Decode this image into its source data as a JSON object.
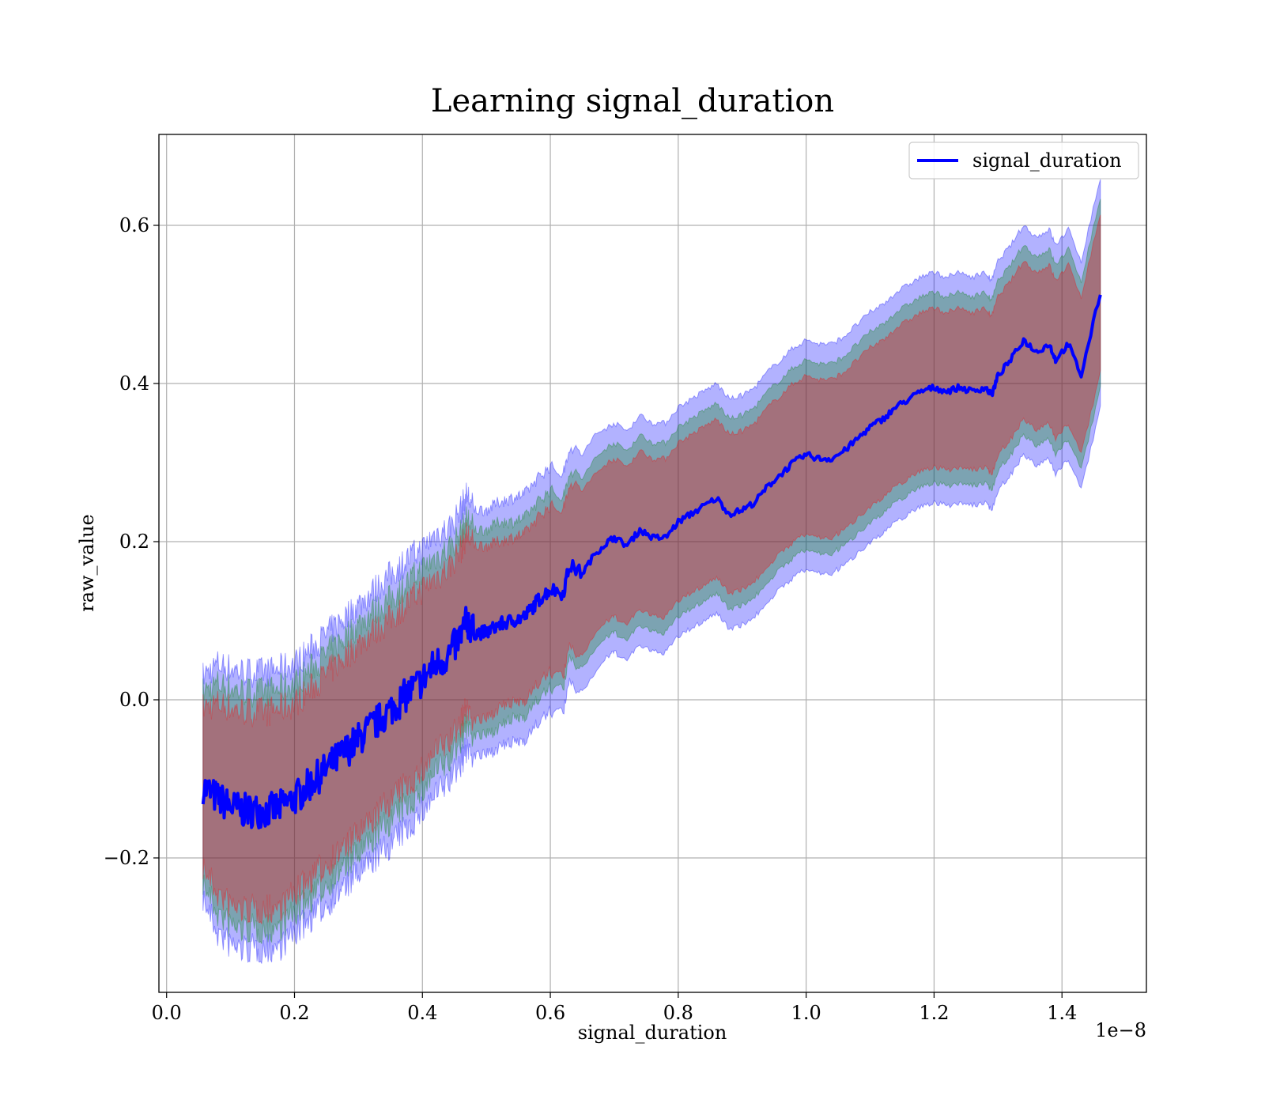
{
  "chart_data": {
    "type": "line",
    "title": "Learning signal_duration",
    "xlabel": "signal_duration",
    "ylabel": "raw_value",
    "x_offset_label": "1e−8",
    "xlim": [
      -0.012,
      1.532
    ],
    "ylim": [
      -0.37,
      0.715
    ],
    "x_unit_scale": 1e-08,
    "xticks": [
      0.0,
      0.2,
      0.4,
      0.6,
      0.8,
      1.0,
      1.2,
      1.4
    ],
    "xtick_labels": [
      "0.0",
      "0.2",
      "0.4",
      "0.6",
      "0.8",
      "1.0",
      "1.2",
      "1.4"
    ],
    "yticks": [
      -0.2,
      0.0,
      0.2,
      0.4,
      0.6
    ],
    "ytick_labels": [
      "−0.2",
      "0.0",
      "0.2",
      "0.4",
      "0.6"
    ],
    "grid": true,
    "legend_position": "top-right",
    "colors": {
      "line": "#0000ff",
      "band_outer": "#0000ff",
      "band_middle": "#008000",
      "band_inner": "#ff0000"
    },
    "series": [
      {
        "name": "signal_duration",
        "x": [
          0.057,
          0.08,
          0.1,
          0.12,
          0.14,
          0.16,
          0.18,
          0.2,
          0.22,
          0.24,
          0.26,
          0.28,
          0.3,
          0.32,
          0.34,
          0.36,
          0.38,
          0.4,
          0.42,
          0.44,
          0.46,
          0.47,
          0.48,
          0.5,
          0.52,
          0.54,
          0.56,
          0.58,
          0.6,
          0.62,
          0.63,
          0.65,
          0.67,
          0.69,
          0.7,
          0.72,
          0.74,
          0.76,
          0.78,
          0.8,
          0.82,
          0.84,
          0.86,
          0.88,
          0.9,
          0.92,
          0.94,
          0.96,
          0.98,
          1.0,
          1.02,
          1.04,
          1.06,
          1.08,
          1.1,
          1.12,
          1.14,
          1.16,
          1.18,
          1.2,
          1.22,
          1.24,
          1.26,
          1.28,
          1.29,
          1.3,
          1.32,
          1.34,
          1.36,
          1.38,
          1.39,
          1.41,
          1.43,
          1.46
        ],
        "y": [
          -0.11,
          -0.125,
          -0.135,
          -0.14,
          -0.14,
          -0.14,
          -0.135,
          -0.125,
          -0.11,
          -0.095,
          -0.08,
          -0.065,
          -0.05,
          -0.035,
          -0.02,
          -0.005,
          0.01,
          0.025,
          0.045,
          0.055,
          0.08,
          0.1,
          0.085,
          0.085,
          0.095,
          0.1,
          0.105,
          0.125,
          0.14,
          0.135,
          0.17,
          0.16,
          0.185,
          0.2,
          0.205,
          0.195,
          0.215,
          0.205,
          0.205,
          0.225,
          0.235,
          0.245,
          0.255,
          0.235,
          0.24,
          0.25,
          0.27,
          0.285,
          0.3,
          0.31,
          0.305,
          0.305,
          0.315,
          0.33,
          0.345,
          0.355,
          0.37,
          0.38,
          0.39,
          0.395,
          0.39,
          0.395,
          0.39,
          0.395,
          0.385,
          0.41,
          0.43,
          0.455,
          0.44,
          0.45,
          0.43,
          0.45,
          0.41,
          0.515
        ],
        "band_halfwidths": {
          "outer": [
            0.14,
            0.17,
            0.175,
            0.175,
            0.175,
            0.175,
            0.175,
            0.17,
            0.17,
            0.17,
            0.17,
            0.17,
            0.17,
            0.17,
            0.17,
            0.17,
            0.17,
            0.165,
            0.165,
            0.16,
            0.16,
            0.16,
            0.155,
            0.155,
            0.155,
            0.155,
            0.155,
            0.155,
            0.155,
            0.15,
            0.15,
            0.15,
            0.15,
            0.145,
            0.145,
            0.145,
            0.145,
            0.145,
            0.145,
            0.145,
            0.145,
            0.145,
            0.145,
            0.145,
            0.145,
            0.145,
            0.145,
            0.145,
            0.145,
            0.145,
            0.145,
            0.145,
            0.145,
            0.145,
            0.145,
            0.145,
            0.145,
            0.145,
            0.145,
            0.145,
            0.145,
            0.145,
            0.145,
            0.145,
            0.145,
            0.145,
            0.145,
            0.145,
            0.145,
            0.145,
            0.145,
            0.145,
            0.145,
            0.145
          ],
          "middle": [
            0.12,
            0.145,
            0.15,
            0.15,
            0.15,
            0.15,
            0.15,
            0.145,
            0.145,
            0.145,
            0.145,
            0.145,
            0.145,
            0.145,
            0.14,
            0.14,
            0.14,
            0.14,
            0.135,
            0.135,
            0.13,
            0.13,
            0.13,
            0.13,
            0.13,
            0.125,
            0.125,
            0.125,
            0.125,
            0.12,
            0.12,
            0.12,
            0.12,
            0.12,
            0.12,
            0.12,
            0.12,
            0.12,
            0.12,
            0.12,
            0.12,
            0.12,
            0.12,
            0.12,
            0.12,
            0.12,
            0.12,
            0.12,
            0.12,
            0.12,
            0.12,
            0.12,
            0.12,
            0.12,
            0.12,
            0.12,
            0.12,
            0.12,
            0.12,
            0.12,
            0.12,
            0.12,
            0.12,
            0.12,
            0.12,
            0.12,
            0.12,
            0.12,
            0.12,
            0.12,
            0.12,
            0.12,
            0.12,
            0.12
          ],
          "inner": [
            0.1,
            0.12,
            0.125,
            0.125,
            0.125,
            0.125,
            0.125,
            0.12,
            0.12,
            0.12,
            0.12,
            0.12,
            0.12,
            0.12,
            0.115,
            0.115,
            0.115,
            0.115,
            0.11,
            0.11,
            0.11,
            0.11,
            0.11,
            0.11,
            0.105,
            0.105,
            0.105,
            0.105,
            0.105,
            0.105,
            0.105,
            0.105,
            0.1,
            0.1,
            0.1,
            0.1,
            0.1,
            0.1,
            0.1,
            0.1,
            0.1,
            0.1,
            0.1,
            0.1,
            0.1,
            0.1,
            0.1,
            0.1,
            0.1,
            0.1,
            0.1,
            0.1,
            0.1,
            0.1,
            0.1,
            0.1,
            0.1,
            0.1,
            0.1,
            0.1,
            0.1,
            0.1,
            0.1,
            0.1,
            0.1,
            0.1,
            0.1,
            0.1,
            0.1,
            0.1,
            0.1,
            0.1,
            0.1,
            0.1
          ]
        }
      }
    ]
  }
}
